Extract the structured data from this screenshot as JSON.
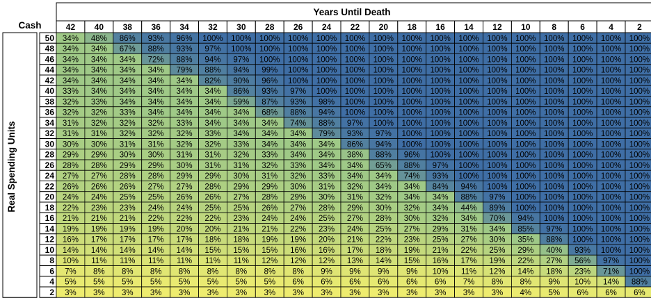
{
  "chart_data": {
    "type": "heatmap",
    "title": "",
    "corner_label": "Cash",
    "xlabel": "Years Until Death",
    "ylabel": "Real Spending Units",
    "x": [
      "42",
      "40",
      "38",
      "36",
      "34",
      "32",
      "30",
      "28",
      "26",
      "24",
      "22",
      "20",
      "18",
      "16",
      "14",
      "12",
      "10",
      "8",
      "6",
      "4",
      "2"
    ],
    "y": [
      "50",
      "48",
      "46",
      "44",
      "42",
      "40",
      "38",
      "36",
      "34",
      "32",
      "30",
      "28",
      "26",
      "24",
      "22",
      "20",
      "18",
      "16",
      "14",
      "12",
      "10",
      "8",
      "6",
      "4",
      "2"
    ],
    "value_format": "percent",
    "color_scale": {
      "low": "#eeec6f",
      "mid": "#9fc987",
      "high": "#3f6ea5"
    },
    "values": [
      [
        34,
        48,
        86,
        93,
        96,
        100,
        100,
        100,
        100,
        100,
        100,
        100,
        100,
        100,
        100,
        100,
        100,
        100,
        100,
        100,
        100
      ],
      [
        34,
        34,
        67,
        88,
        93,
        97,
        100,
        100,
        100,
        100,
        100,
        100,
        100,
        100,
        100,
        100,
        100,
        100,
        100,
        100,
        100
      ],
      [
        34,
        34,
        34,
        72,
        88,
        94,
        97,
        100,
        100,
        100,
        100,
        100,
        100,
        100,
        100,
        100,
        100,
        100,
        100,
        100,
        100
      ],
      [
        34,
        34,
        34,
        34,
        79,
        88,
        94,
        99,
        100,
        100,
        100,
        100,
        100,
        100,
        100,
        100,
        100,
        100,
        100,
        100,
        100
      ],
      [
        34,
        34,
        34,
        34,
        34,
        82,
        90,
        96,
        100,
        100,
        100,
        100,
        100,
        100,
        100,
        100,
        100,
        100,
        100,
        100,
        100
      ],
      [
        33,
        34,
        34,
        34,
        34,
        34,
        86,
        93,
        97,
        100,
        100,
        100,
        100,
        100,
        100,
        100,
        100,
        100,
        100,
        100,
        100
      ],
      [
        32,
        33,
        34,
        34,
        34,
        34,
        59,
        87,
        93,
        98,
        100,
        100,
        100,
        100,
        100,
        100,
        100,
        100,
        100,
        100,
        100
      ],
      [
        32,
        32,
        33,
        34,
        34,
        34,
        34,
        68,
        88,
        94,
        100,
        100,
        100,
        100,
        100,
        100,
        100,
        100,
        100,
        100,
        100
      ],
      [
        31,
        32,
        32,
        32,
        33,
        34,
        34,
        34,
        74,
        88,
        97,
        100,
        100,
        100,
        100,
        100,
        100,
        100,
        100,
        100,
        100
      ],
      [
        31,
        31,
        32,
        32,
        32,
        33,
        34,
        34,
        34,
        79,
        93,
        97,
        100,
        100,
        100,
        100,
        100,
        100,
        100,
        100,
        100
      ],
      [
        30,
        30,
        31,
        31,
        32,
        32,
        33,
        34,
        34,
        34,
        86,
        94,
        100,
        100,
        100,
        100,
        100,
        100,
        100,
        100,
        100
      ],
      [
        29,
        29,
        30,
        30,
        31,
        31,
        32,
        33,
        34,
        34,
        38,
        88,
        96,
        100,
        100,
        100,
        100,
        100,
        100,
        100,
        100
      ],
      [
        28,
        28,
        29,
        29,
        30,
        31,
        31,
        32,
        33,
        34,
        34,
        65,
        88,
        97,
        100,
        100,
        100,
        100,
        100,
        100,
        100
      ],
      [
        27,
        27,
        28,
        28,
        29,
        29,
        30,
        31,
        32,
        33,
        34,
        34,
        74,
        93,
        100,
        100,
        100,
        100,
        100,
        100,
        100
      ],
      [
        26,
        26,
        26,
        27,
        27,
        28,
        29,
        29,
        30,
        31,
        32,
        34,
        34,
        84,
        94,
        100,
        100,
        100,
        100,
        100,
        100
      ],
      [
        24,
        24,
        25,
        25,
        26,
        26,
        27,
        28,
        29,
        30,
        31,
        32,
        34,
        34,
        88,
        97,
        100,
        100,
        100,
        100,
        100
      ],
      [
        22,
        23,
        23,
        24,
        24,
        25,
        25,
        26,
        27,
        28,
        29,
        30,
        32,
        34,
        44,
        89,
        100,
        100,
        100,
        100,
        100
      ],
      [
        21,
        21,
        21,
        22,
        22,
        22,
        23,
        24,
        24,
        25,
        27,
        28,
        30,
        32,
        34,
        70,
        94,
        100,
        100,
        100,
        100
      ],
      [
        19,
        19,
        19,
        19,
        20,
        20,
        21,
        21,
        22,
        23,
        24,
        25,
        27,
        29,
        31,
        34,
        85,
        97,
        100,
        100,
        100
      ],
      [
        16,
        17,
        17,
        17,
        17,
        18,
        18,
        19,
        19,
        20,
        21,
        22,
        23,
        25,
        27,
        30,
        35,
        88,
        100,
        100,
        100
      ],
      [
        14,
        14,
        14,
        14,
        14,
        15,
        15,
        15,
        16,
        16,
        17,
        18,
        19,
        21,
        22,
        25,
        29,
        40,
        93,
        100,
        100
      ],
      [
        10,
        11,
        11,
        11,
        11,
        11,
        11,
        12,
        12,
        12,
        13,
        14,
        15,
        16,
        17,
        19,
        22,
        27,
        56,
        97,
        100
      ],
      [
        7,
        8,
        8,
        8,
        8,
        8,
        8,
        8,
        8,
        9,
        9,
        9,
        9,
        10,
        11,
        12,
        14,
        18,
        23,
        71,
        100
      ],
      [
        5,
        5,
        5,
        5,
        5,
        5,
        5,
        5,
        6,
        6,
        6,
        6,
        6,
        6,
        7,
        8,
        8,
        9,
        10,
        14,
        88
      ],
      [
        3,
        3,
        3,
        3,
        3,
        3,
        3,
        3,
        3,
        3,
        3,
        3,
        3,
        3,
        3,
        3,
        4,
        5,
        6,
        6,
        6
      ]
    ]
  }
}
